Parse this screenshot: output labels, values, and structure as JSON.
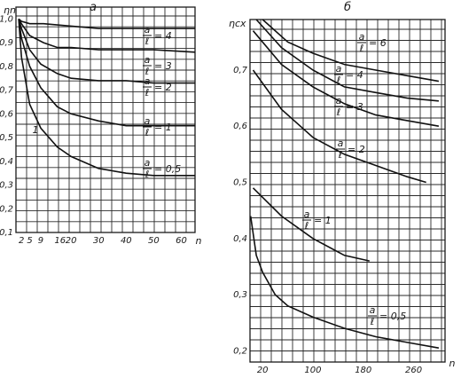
{
  "chart_data": [
    {
      "panel": "а",
      "type": "line",
      "ylabel": "η_n",
      "xlabel": "n",
      "xlim": [
        0,
        65
      ],
      "ylim": [
        0.1,
        1.05
      ],
      "x_ticks": [
        "2",
        "5",
        "9",
        "16",
        "20",
        "30",
        "40",
        "50",
        "60"
      ],
      "x_tick_values": [
        2,
        5,
        9,
        16,
        20,
        30,
        40,
        50,
        60
      ],
      "y_ticks": [
        "1,0",
        "0,9",
        "0,8",
        "0,7",
        "0,6",
        "0,5",
        "0,4",
        "0,3",
        "0,2",
        "0,1"
      ],
      "y_tick_values": [
        1.0,
        0.9,
        0.8,
        0.7,
        0.6,
        0.5,
        0.4,
        0.3,
        0.2,
        0.1
      ],
      "series": [
        {
          "label": "a/l = 4",
          "x": [
            1,
            2,
            5,
            10,
            20,
            30,
            40,
            50,
            65
          ],
          "y": [
            1.0,
            0.99,
            0.98,
            0.98,
            0.97,
            0.96,
            0.96,
            0.96,
            0.96
          ]
        },
        {
          "label": "a/l = 3",
          "x": [
            1,
            2,
            5,
            10,
            15,
            20,
            30,
            40,
            50,
            65
          ],
          "y": [
            1.0,
            0.98,
            0.93,
            0.9,
            0.88,
            0.88,
            0.87,
            0.87,
            0.87,
            0.86
          ]
        },
        {
          "label": "a/l = 2",
          "x": [
            1,
            2,
            5,
            9,
            15,
            20,
            30,
            40,
            50,
            65
          ],
          "y": [
            1.0,
            0.96,
            0.87,
            0.81,
            0.77,
            0.75,
            0.74,
            0.74,
            0.73,
            0.73
          ]
        },
        {
          "label": "a/l = 1",
          "x": [
            1,
            2,
            5,
            9,
            15,
            20,
            30,
            40,
            50,
            65
          ],
          "y": [
            1.0,
            0.92,
            0.8,
            0.71,
            0.63,
            0.6,
            0.57,
            0.55,
            0.55,
            0.55
          ]
        },
        {
          "label": "a/l = 0,5",
          "x": [
            1,
            2,
            5,
            9,
            15,
            20,
            30,
            40,
            50,
            65
          ],
          "y": [
            1.0,
            0.84,
            0.64,
            0.54,
            0.46,
            0.42,
            0.37,
            0.35,
            0.34,
            0.34
          ]
        }
      ],
      "annotations": [
        "1"
      ]
    },
    {
      "panel": "б",
      "type": "line",
      "ylabel": "η_сх",
      "xlabel": "n",
      "xlim": [
        0,
        310
      ],
      "ylim": [
        0.18,
        0.79
      ],
      "x_ticks": [
        "20",
        "100",
        "180",
        "260"
      ],
      "x_tick_values": [
        20,
        100,
        180,
        260
      ],
      "y_ticks": [
        "0,7",
        "0,6",
        "0,5",
        "0,4",
        "0,3",
        "0,2"
      ],
      "y_tick_values": [
        0.7,
        0.6,
        0.5,
        0.4,
        0.3,
        0.2
      ],
      "series": [
        {
          "label": "a/l = 6",
          "x": [
            20,
            60,
            100,
            150,
            200,
            250,
            300
          ],
          "y": [
            0.79,
            0.75,
            0.73,
            0.71,
            0.7,
            0.69,
            0.68
          ]
        },
        {
          "label": "a/l = 4",
          "x": [
            10,
            50,
            100,
            150,
            200,
            250,
            300
          ],
          "y": [
            0.79,
            0.74,
            0.7,
            0.67,
            0.66,
            0.65,
            0.645
          ]
        },
        {
          "label": "a/l = 3",
          "x": [
            5,
            50,
            100,
            150,
            200,
            250,
            300
          ],
          "y": [
            0.77,
            0.71,
            0.67,
            0.64,
            0.62,
            0.61,
            0.6
          ]
        },
        {
          "label": "a/l = 2",
          "x": [
            5,
            50,
            100,
            150,
            200,
            250,
            280
          ],
          "y": [
            0.7,
            0.63,
            0.58,
            0.55,
            0.53,
            0.51,
            0.5
          ]
        },
        {
          "label": "a/l = 1",
          "x": [
            5,
            50,
            100,
            150,
            190
          ],
          "y": [
            0.49,
            0.44,
            0.4,
            0.37,
            0.36
          ]
        },
        {
          "label": "a/l = 0,5",
          "x": [
            1,
            10,
            20,
            40,
            60,
            100,
            150,
            200,
            250,
            300
          ],
          "y": [
            0.44,
            0.37,
            0.34,
            0.3,
            0.28,
            0.26,
            0.24,
            0.225,
            0.215,
            0.205
          ]
        }
      ]
    }
  ]
}
